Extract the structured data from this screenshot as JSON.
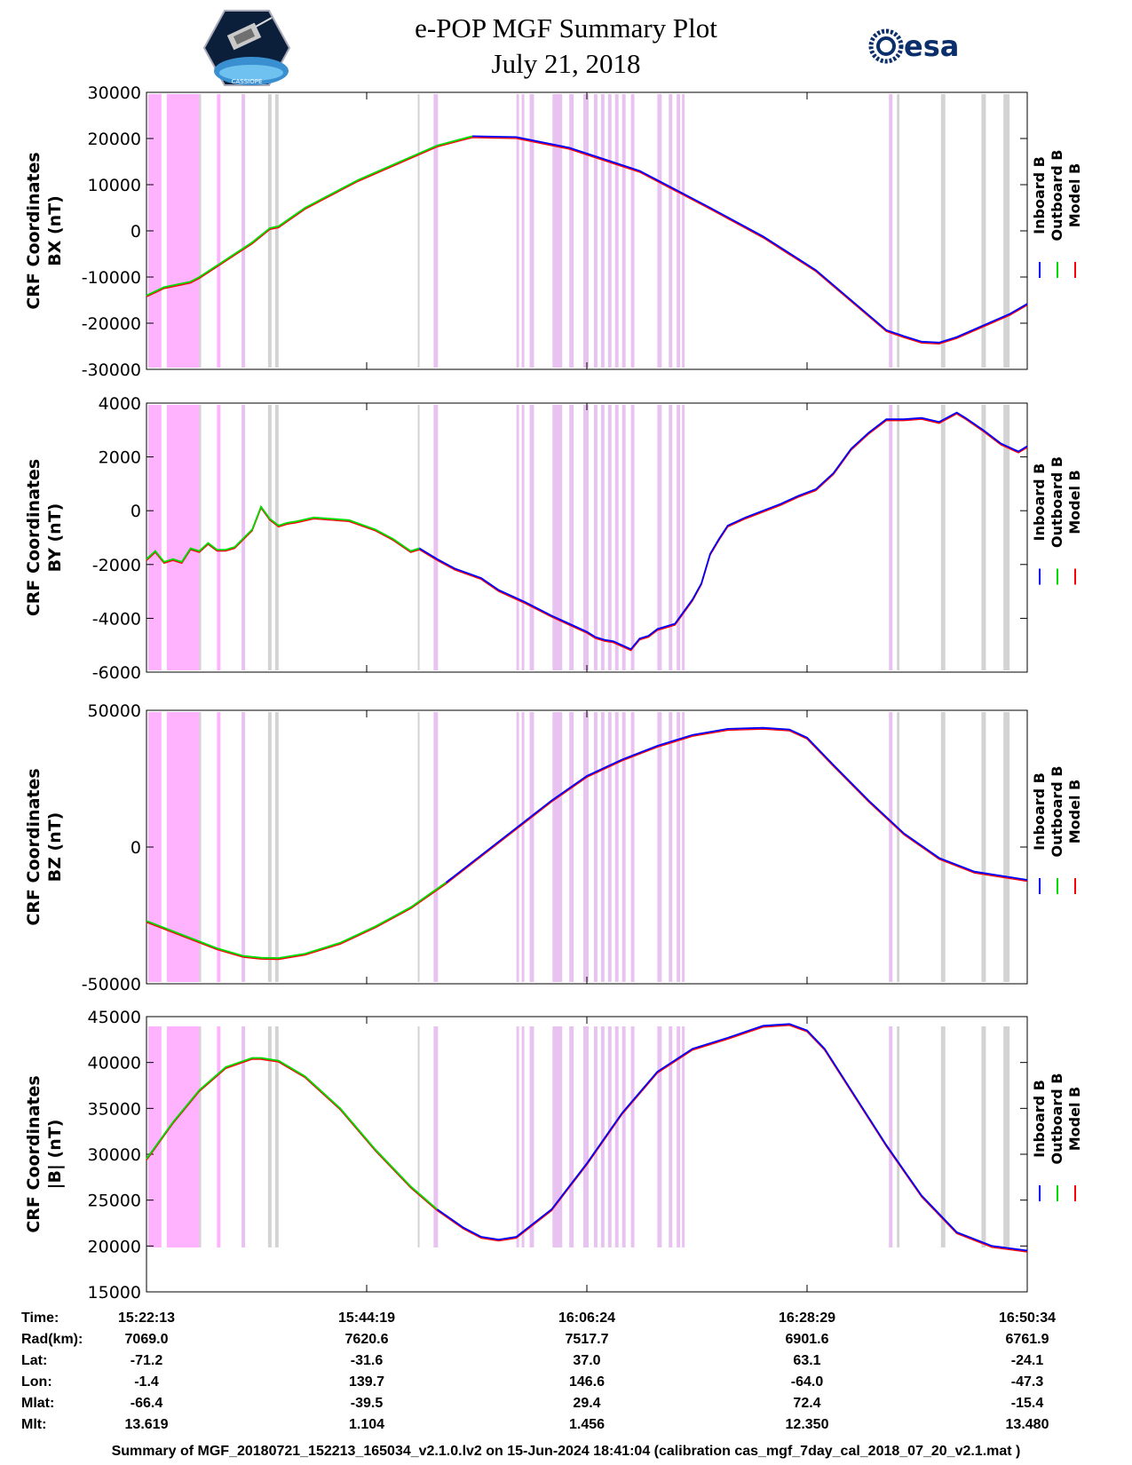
{
  "header": {
    "title": "e-POP MGF Summary Plot",
    "date": "July 21, 2018",
    "logo_left_text": "CASSIOPE",
    "logo_right_text": "esa"
  },
  "legend": {
    "entries": [
      {
        "name": "Inboard B",
        "color": "#0000ff"
      },
      {
        "name": "Outboard B",
        "color": "#00dd00"
      },
      {
        "name": "Model B",
        "color": "#ff0000"
      }
    ]
  },
  "colors": {
    "inboard": "#0000ff",
    "outboard": "#00dd00",
    "model": "#ff0000",
    "band_magenta": "#ffb3ff",
    "band_light_magenta": "#e8c2f0",
    "band_gray": "#d3d3d3"
  },
  "chart_data": [
    {
      "type": "line",
      "panel": "BX",
      "ylabel_line1": "CRF Coordinates",
      "ylabel_line2": "BX (nT)",
      "ylim": [
        -30000,
        30000
      ],
      "yticks": [
        30000,
        20000,
        10000,
        0,
        -10000,
        -20000,
        -30000
      ],
      "xlim": [
        0,
        100
      ],
      "green_end": 37,
      "series_x": [
        0,
        2,
        5,
        6,
        8,
        12,
        14,
        15,
        18,
        24,
        30,
        33,
        37,
        42,
        48,
        52,
        56,
        60,
        64,
        70,
        76,
        80,
        84,
        86,
        88,
        90,
        92,
        95,
        98,
        100
      ],
      "series_y": [
        -14000,
        -12200,
        -11000,
        -10000,
        -7500,
        -2500,
        600,
        1000,
        5000,
        11000,
        16000,
        18500,
        20500,
        20300,
        18000,
        15500,
        13000,
        9000,
        5000,
        -1200,
        -8500,
        -15000,
        -21500,
        -22800,
        -24000,
        -24200,
        -23000,
        -20500,
        -18000,
        -15800
      ]
    },
    {
      "type": "line",
      "panel": "BY",
      "ylabel_line1": "CRF Coordinates",
      "ylabel_line2": "BY (nT)",
      "ylim": [
        -6000,
        4000
      ],
      "yticks": [
        4000,
        2000,
        0,
        -2000,
        -4000,
        -6000
      ],
      "xlim": [
        0,
        100
      ],
      "green_end": 31,
      "series_x": [
        0,
        1,
        2,
        3,
        4,
        5,
        6,
        7,
        8,
        9,
        10,
        12,
        13,
        14,
        15,
        16,
        17,
        19,
        23,
        26,
        28,
        30,
        31,
        33,
        35,
        38,
        40,
        43,
        46,
        48,
        50,
        51,
        52,
        53,
        54,
        55,
        56,
        57,
        58,
        60,
        62,
        63,
        64,
        65,
        66,
        68,
        70,
        72,
        74,
        76,
        78,
        80,
        82,
        84,
        86,
        88,
        90,
        92,
        93,
        95,
        97,
        99,
        100
      ],
      "series_y": [
        -1800,
        -1500,
        -1900,
        -1800,
        -1900,
        -1400,
        -1500,
        -1200,
        -1450,
        -1450,
        -1350,
        -700,
        150,
        -300,
        -550,
        -450,
        -400,
        -250,
        -350,
        -700,
        -1050,
        -1500,
        -1400,
        -1800,
        -2150,
        -2500,
        -2950,
        -3400,
        -3900,
        -4200,
        -4500,
        -4700,
        -4800,
        -4850,
        -5000,
        -5150,
        -4750,
        -4650,
        -4400,
        -4200,
        -3300,
        -2700,
        -1600,
        -1050,
        -550,
        -250,
        0,
        250,
        550,
        800,
        1400,
        2300,
        2900,
        3400,
        3400,
        3450,
        3300,
        3650,
        3450,
        3000,
        2500,
        2200,
        2400
      ]
    },
    {
      "type": "line",
      "panel": "BZ",
      "ylabel_line1": "CRF Coordinates",
      "ylabel_line2": "BZ (nT)",
      "ylim": [
        -50000,
        50000
      ],
      "yticks": [
        50000,
        0,
        -50000
      ],
      "xlim": [
        0,
        100
      ],
      "green_end": 36,
      "series_x": [
        0,
        4,
        8,
        11,
        13,
        15,
        18,
        22,
        26,
        30,
        34,
        38,
        42,
        46,
        50,
        54,
        58,
        62,
        66,
        70,
        73,
        75,
        78,
        82,
        86,
        90,
        94,
        98,
        100
      ],
      "series_y": [
        -27000,
        -32000,
        -37000,
        -39800,
        -40500,
        -40600,
        -39000,
        -35000,
        -29000,
        -22000,
        -13000,
        -3000,
        7000,
        17000,
        26000,
        32000,
        37000,
        41000,
        43200,
        43600,
        43000,
        40000,
        30000,
        17000,
        5000,
        -4000,
        -9000,
        -11000,
        -12000
      ]
    },
    {
      "type": "line",
      "panel": "|B|",
      "ylabel_line1": "CRF Coordinates",
      "ylabel_line2": "|B| (nT)",
      "ylim": [
        15000,
        45000
      ],
      "yticks": [
        45000,
        40000,
        35000,
        30000,
        25000,
        20000,
        15000
      ],
      "xlim": [
        0,
        100
      ],
      "green_end": 33,
      "series_x": [
        0,
        3,
        6,
        9,
        12,
        13,
        15,
        18,
        22,
        26,
        30,
        33,
        36,
        38,
        40,
        42,
        46,
        50,
        54,
        58,
        62,
        66,
        70,
        73,
        75,
        77,
        80,
        84,
        88,
        92,
        96,
        100
      ],
      "series_y": [
        29500,
        33500,
        37000,
        39500,
        40500,
        40500,
        40200,
        38500,
        35000,
        30500,
        26500,
        24000,
        22000,
        21000,
        20700,
        21000,
        24000,
        29000,
        34500,
        39000,
        41500,
        42700,
        44000,
        44200,
        43500,
        41500,
        37000,
        31000,
        25500,
        21500,
        20000,
        19500
      ]
    }
  ],
  "x_axis": {
    "tick_positions": [
      0,
      25,
      50,
      75,
      100
    ]
  },
  "ephemeris": {
    "rows": [
      {
        "label": "Time:",
        "values": [
          "15:22:13",
          "15:44:19",
          "16:06:24",
          "16:28:29",
          "16:50:34"
        ]
      },
      {
        "label": "Rad(km):",
        "values": [
          "7069.0",
          "7620.6",
          "7517.7",
          "6901.6",
          "6761.9"
        ]
      },
      {
        "label": "Lat:",
        "values": [
          "-71.2",
          "-31.6",
          "37.0",
          "63.1",
          "-24.1"
        ]
      },
      {
        "label": "Lon:",
        "values": [
          "-1.4",
          "139.7",
          "146.6",
          "-64.0",
          "-47.3"
        ]
      },
      {
        "label": "Mlat:",
        "values": [
          "-66.4",
          "-39.5",
          "29.4",
          "72.4",
          "-15.4"
        ]
      },
      {
        "label": "Mlt:",
        "values": [
          "13.619",
          "1.104",
          "1.456",
          "12.350",
          "13.480"
        ]
      }
    ]
  },
  "footer": "Summary of MGF_20180721_152213_165034_v2.1.0.lv2 on 15-Jun-2024 18:41:04 (calibration cas_mgf_7day_cal_2018_07_20_v2.1.mat )",
  "bands": [
    {
      "x0": 0.2,
      "x1": 1.7,
      "c": "band_magenta"
    },
    {
      "x0": 2.3,
      "x1": 6.0,
      "c": "band_magenta"
    },
    {
      "x0": 6.0,
      "x1": 6.2,
      "c": "band_gray"
    },
    {
      "x0": 8.0,
      "x1": 8.4,
      "c": "band_magenta"
    },
    {
      "x0": 10.8,
      "x1": 11.2,
      "c": "band_light_magenta"
    },
    {
      "x0": 13.8,
      "x1": 14.2,
      "c": "band_gray"
    },
    {
      "x0": 14.6,
      "x1": 15.0,
      "c": "band_gray"
    },
    {
      "x0": 30.8,
      "x1": 31.0,
      "c": "band_gray"
    },
    {
      "x0": 32.6,
      "x1": 33.1,
      "c": "band_light_magenta"
    },
    {
      "x0": 42.0,
      "x1": 42.3,
      "c": "band_light_magenta"
    },
    {
      "x0": 42.6,
      "x1": 42.9,
      "c": "band_light_magenta"
    },
    {
      "x0": 43.5,
      "x1": 44.0,
      "c": "band_light_magenta"
    },
    {
      "x0": 46.1,
      "x1": 47.2,
      "c": "band_light_magenta"
    },
    {
      "x0": 48.0,
      "x1": 48.5,
      "c": "band_light_magenta"
    },
    {
      "x0": 49.6,
      "x1": 50.2,
      "c": "band_light_magenta"
    },
    {
      "x0": 50.8,
      "x1": 51.2,
      "c": "band_light_magenta"
    },
    {
      "x0": 51.6,
      "x1": 52.0,
      "c": "band_light_magenta"
    },
    {
      "x0": 52.4,
      "x1": 52.8,
      "c": "band_light_magenta"
    },
    {
      "x0": 53.2,
      "x1": 53.6,
      "c": "band_light_magenta"
    },
    {
      "x0": 54.0,
      "x1": 54.4,
      "c": "band_light_magenta"
    },
    {
      "x0": 55.0,
      "x1": 55.4,
      "c": "band_light_magenta"
    },
    {
      "x0": 58.0,
      "x1": 58.5,
      "c": "band_light_magenta"
    },
    {
      "x0": 59.3,
      "x1": 59.7,
      "c": "band_light_magenta"
    },
    {
      "x0": 60.2,
      "x1": 60.6,
      "c": "band_light_magenta"
    },
    {
      "x0": 60.8,
      "x1": 61.1,
      "c": "band_light_magenta"
    },
    {
      "x0": 84.3,
      "x1": 84.7,
      "c": "band_light_magenta"
    },
    {
      "x0": 85.2,
      "x1": 85.5,
      "c": "band_gray"
    },
    {
      "x0": 90.2,
      "x1": 90.7,
      "c": "band_gray"
    },
    {
      "x0": 94.8,
      "x1": 95.3,
      "c": "band_gray"
    },
    {
      "x0": 97.3,
      "x1": 98.0,
      "c": "band_gray"
    }
  ]
}
